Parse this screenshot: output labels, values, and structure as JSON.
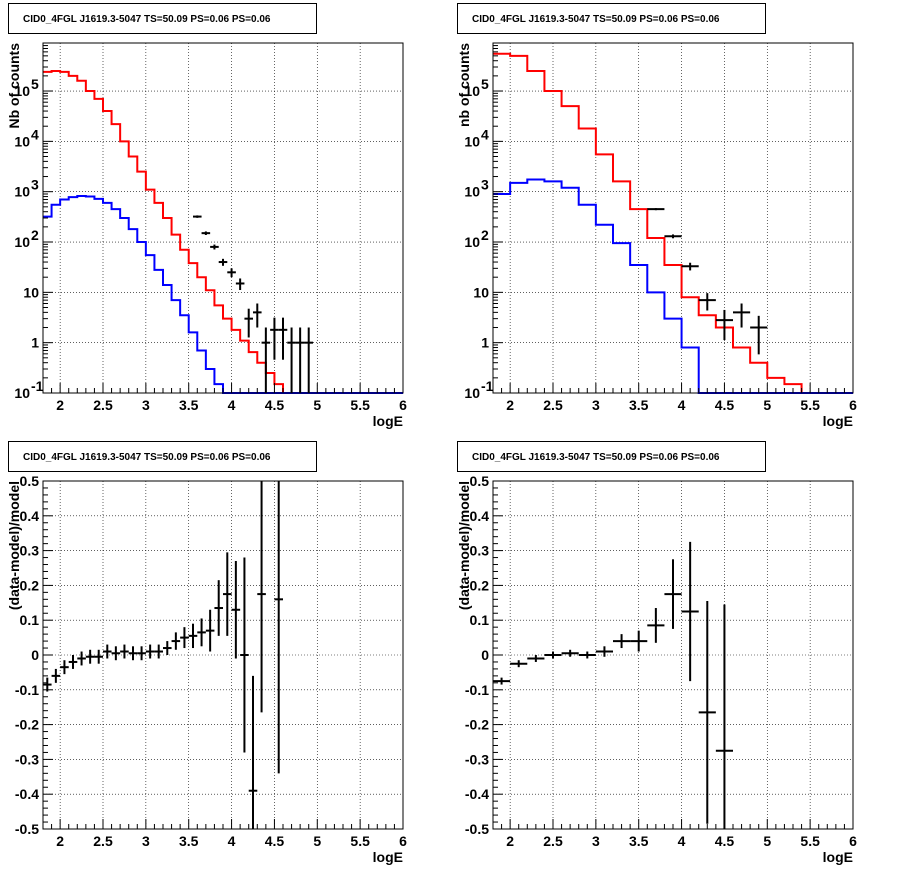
{
  "chart_data": [
    {
      "type": "line",
      "title": "CID0_4FGL J1619.3-5047 TS=50.09 PS=0.06 PS=0.06",
      "xlabel": "logE",
      "ylabel": "Nb of counts",
      "xlim": [
        1.8,
        6.0
      ],
      "ylim": [
        0.1,
        900000
      ],
      "yscale": "log",
      "grid": true,
      "xticks": [
        2,
        2.5,
        3,
        3.5,
        4,
        4.5,
        5,
        5.5,
        6
      ],
      "xtick_labels": [
        "2",
        "2.5",
        "3",
        "3.5",
        "4",
        "4.5",
        "5",
        "5.5",
        "6"
      ],
      "yticks": [
        0.1,
        1,
        10,
        100,
        1000,
        10000,
        100000
      ],
      "ytick_labels": [
        "10^-1",
        "1",
        "10",
        "10^2",
        "10^3",
        "10^4",
        "10^5"
      ],
      "bin_edges": [
        1.8,
        1.9,
        2.0,
        2.1,
        2.2,
        2.3,
        2.4,
        2.5,
        2.6,
        2.7,
        2.8,
        2.9,
        3.0,
        3.1,
        3.2,
        3.3,
        3.4,
        3.5,
        3.6,
        3.7,
        3.8,
        3.9,
        4.0,
        4.1,
        4.2,
        4.3,
        4.4,
        4.5,
        4.6,
        4.7,
        4.8,
        4.9,
        5.0,
        5.1,
        5.2,
        5.3,
        5.4,
        5.5,
        5.6,
        5.7,
        5.8,
        5.9,
        6.0
      ],
      "series": [
        {
          "color": "#ff0000",
          "style": "histogram",
          "values": [
            240000,
            250000,
            240000,
            200000,
            160000,
            100000,
            70000,
            40000,
            22000,
            10000,
            5000,
            2500,
            1100,
            600,
            300,
            140,
            70,
            38,
            20,
            11,
            5.5,
            3,
            1.8,
            1.1,
            0.65,
            0.4,
            0.25,
            0.15,
            0.1,
            0.1,
            0.1,
            0.1,
            0.1,
            0.1,
            0.1,
            0.1,
            0.1,
            0.1,
            0.1,
            0.1,
            0.1,
            0.1
          ]
        },
        {
          "color": "#0000ff",
          "style": "histogram",
          "values": [
            320,
            550,
            700,
            780,
            820,
            800,
            720,
            600,
            450,
            300,
            180,
            100,
            55,
            28,
            14,
            7,
            3.5,
            1.6,
            0.7,
            0.3,
            0.15,
            0.1,
            0.1,
            0.1,
            0.1,
            0.1,
            0.1,
            0.1,
            0.1,
            0.1,
            0.1,
            0.1,
            0.1,
            0.1,
            0.1,
            0.1,
            0.1,
            0.1,
            0.1,
            0.1,
            0.1,
            0.1
          ]
        },
        {
          "color": "#000000",
          "style": "points",
          "x": [
            3.6,
            3.7,
            3.8,
            3.9,
            4.0,
            4.1,
            4.2,
            4.3,
            4.4,
            4.5,
            4.6,
            4.7,
            4.8,
            4.9
          ],
          "values": [
            320,
            150,
            80,
            40,
            25,
            15,
            3,
            4,
            1,
            1.8,
            1.8,
            1,
            1,
            1
          ],
          "xerr": 0.05
        }
      ]
    },
    {
      "type": "line",
      "title": "CID0_4FGL J1619.3-5047 TS=50.09 PS=0.06 PS=0.06",
      "xlabel": "logE",
      "ylabel": "nb of counts",
      "xlim": [
        1.8,
        6.0
      ],
      "ylim": [
        0.1,
        900000
      ],
      "yscale": "log",
      "grid": true,
      "xticks": [
        2,
        2.5,
        3,
        3.5,
        4,
        4.5,
        5,
        5.5,
        6
      ],
      "xtick_labels": [
        "2",
        "2.5",
        "3",
        "3.5",
        "4",
        "4.5",
        "5",
        "5.5",
        "6"
      ],
      "yticks": [
        0.1,
        1,
        10,
        100,
        1000,
        10000,
        100000
      ],
      "ytick_labels": [
        "10^-1",
        "1",
        "10",
        "10^2",
        "10^3",
        "10^4",
        "10^5"
      ],
      "bin_edges": [
        1.8,
        2.0,
        2.2,
        2.4,
        2.6,
        2.8,
        3.0,
        3.2,
        3.4,
        3.6,
        3.8,
        4.0,
        4.2,
        4.4,
        4.6,
        4.8,
        5.0,
        5.2,
        5.4,
        5.6,
        5.8,
        6.0
      ],
      "series": [
        {
          "color": "#ff0000",
          "style": "histogram",
          "values": [
            550000,
            500000,
            250000,
            100000,
            50000,
            18000,
            5500,
            1600,
            450,
            120,
            35,
            8,
            3.5,
            2,
            0.8,
            0.4,
            0.2,
            0.15,
            0.1,
            0.1,
            0.1
          ]
        },
        {
          "color": "#0000ff",
          "style": "histogram",
          "values": [
            900,
            1500,
            1750,
            1600,
            1200,
            550,
            220,
            95,
            35,
            10,
            3,
            0.8,
            0.1,
            0.1,
            0.1,
            0.1,
            0.1,
            0.1,
            0.1,
            0.1,
            0.1
          ]
        },
        {
          "color": "#000000",
          "style": "points",
          "x": [
            3.7,
            3.9,
            4.1,
            4.3,
            4.5,
            4.7,
            4.9
          ],
          "values": [
            450,
            130,
            33,
            7,
            2.8,
            4,
            2
          ],
          "xerr": 0.1
        }
      ]
    },
    {
      "type": "scatter",
      "title": "CID0_4FGL J1619.3-5047 TS=50.09 PS=0.06 PS=0.06",
      "xlabel": "logE",
      "ylabel": "(data-model)/model",
      "xlim": [
        1.8,
        6.0
      ],
      "ylim": [
        -0.5,
        0.5
      ],
      "grid": true,
      "xticks": [
        2,
        2.5,
        3,
        3.5,
        4,
        4.5,
        5,
        5.5,
        6
      ],
      "xtick_labels": [
        "2",
        "2.5",
        "3",
        "3.5",
        "4",
        "4.5",
        "5",
        "5.5",
        "6"
      ],
      "yticks": [
        -0.5,
        -0.4,
        -0.3,
        -0.2,
        -0.1,
        0,
        0.1,
        0.2,
        0.3,
        0.4,
        0.5
      ],
      "ytick_labels": [
        "-0.5",
        "-0.4",
        "-0.3",
        "-0.2",
        "-0.1",
        "0",
        "0.1",
        "0.2",
        "0.3",
        "0.4",
        "0.5"
      ],
      "series": [
        {
          "color": "#000000",
          "xerr": 0.05,
          "x": [
            1.85,
            1.95,
            2.05,
            2.15,
            2.25,
            2.35,
            2.45,
            2.55,
            2.65,
            2.75,
            2.85,
            2.95,
            3.05,
            3.15,
            3.25,
            3.35,
            3.45,
            3.55,
            3.65,
            3.75,
            3.85,
            3.95,
            4.05,
            4.15,
            4.25,
            4.35,
            4.55
          ],
          "y": [
            -0.085,
            -0.06,
            -0.035,
            -0.02,
            -0.01,
            -0.005,
            -0.005,
            0.01,
            0.005,
            0.01,
            0.005,
            0.005,
            0.01,
            0.01,
            0.02,
            0.04,
            0.05,
            0.055,
            0.065,
            0.07,
            0.135,
            0.175,
            0.13,
            0.0,
            -0.39,
            0.175,
            0.16
          ],
          "yerr": [
            0.02,
            0.02,
            0.02,
            0.02,
            0.02,
            0.02,
            0.02,
            0.02,
            0.02,
            0.02,
            0.02,
            0.02,
            0.02,
            0.02,
            0.02,
            0.025,
            0.03,
            0.035,
            0.04,
            0.06,
            0.08,
            0.12,
            0.14,
            0.28,
            0.33,
            0.34,
            0.5
          ]
        }
      ]
    },
    {
      "type": "scatter",
      "title": "CID0_4FGL J1619.3-5047 TS=50.09 PS=0.06 PS=0.06",
      "xlabel": "logE",
      "ylabel": "(data-model)/model",
      "xlim": [
        1.8,
        6.0
      ],
      "ylim": [
        -0.5,
        0.5
      ],
      "grid": true,
      "xticks": [
        2,
        2.5,
        3,
        3.5,
        4,
        4.5,
        5,
        5.5,
        6
      ],
      "xtick_labels": [
        "2",
        "2.5",
        "3",
        "3.5",
        "4",
        "4.5",
        "5",
        "5.5",
        "6"
      ],
      "yticks": [
        -0.5,
        -0.4,
        -0.3,
        -0.2,
        -0.1,
        0,
        0.1,
        0.2,
        0.3,
        0.4,
        0.5
      ],
      "ytick_labels": [
        "-0.5",
        "-0.4",
        "-0.3",
        "-0.2",
        "-0.1",
        "0",
        "0.1",
        "0.2",
        "0.3",
        "0.4",
        "0.5"
      ],
      "series": [
        {
          "color": "#000000",
          "xerr": 0.1,
          "x": [
            1.9,
            2.1,
            2.3,
            2.5,
            2.7,
            2.9,
            3.1,
            3.3,
            3.5,
            3.7,
            3.9,
            4.1,
            4.3,
            4.5
          ],
          "y": [
            -0.075,
            -0.025,
            -0.01,
            0.0,
            0.005,
            0.0,
            0.01,
            0.04,
            0.04,
            0.085,
            0.175,
            0.125,
            -0.165,
            -0.275
          ],
          "yerr": [
            0.01,
            0.01,
            0.01,
            0.01,
            0.01,
            0.01,
            0.015,
            0.02,
            0.03,
            0.05,
            0.1,
            0.2,
            0.32,
            0.42
          ]
        }
      ]
    }
  ]
}
